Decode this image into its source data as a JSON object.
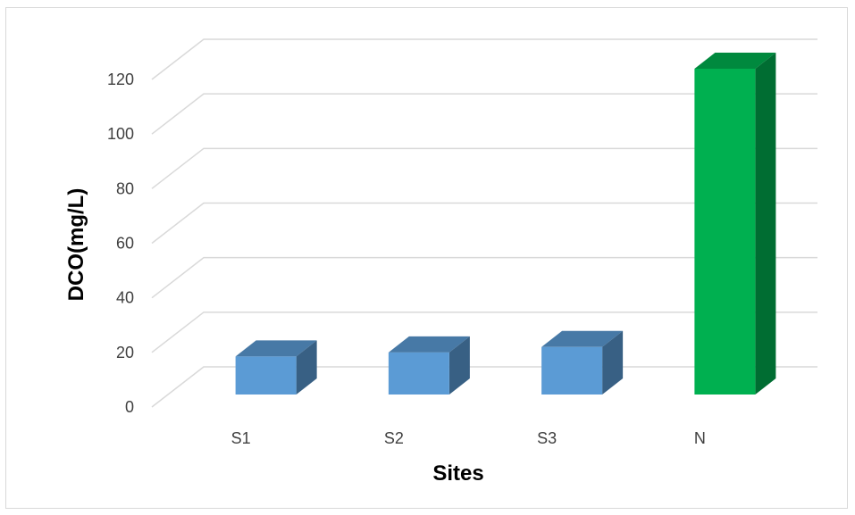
{
  "chart_data": {
    "type": "bar",
    "style": "3d-column",
    "categories": [
      "S1",
      "S2",
      "S3",
      "N"
    ],
    "values": [
      14,
      15.5,
      17.5,
      120
    ],
    "xlabel": "Sites",
    "ylabel": "DCO(mg/L)",
    "ylim": [
      0,
      120
    ],
    "yticks": [
      0,
      20,
      40,
      60,
      80,
      100,
      120
    ],
    "grid": true,
    "legend": "none",
    "colors": {
      "S1": "#5b9bd5",
      "S2": "#5b9bd5",
      "S3": "#5b9bd5",
      "N": "#00b050"
    }
  }
}
